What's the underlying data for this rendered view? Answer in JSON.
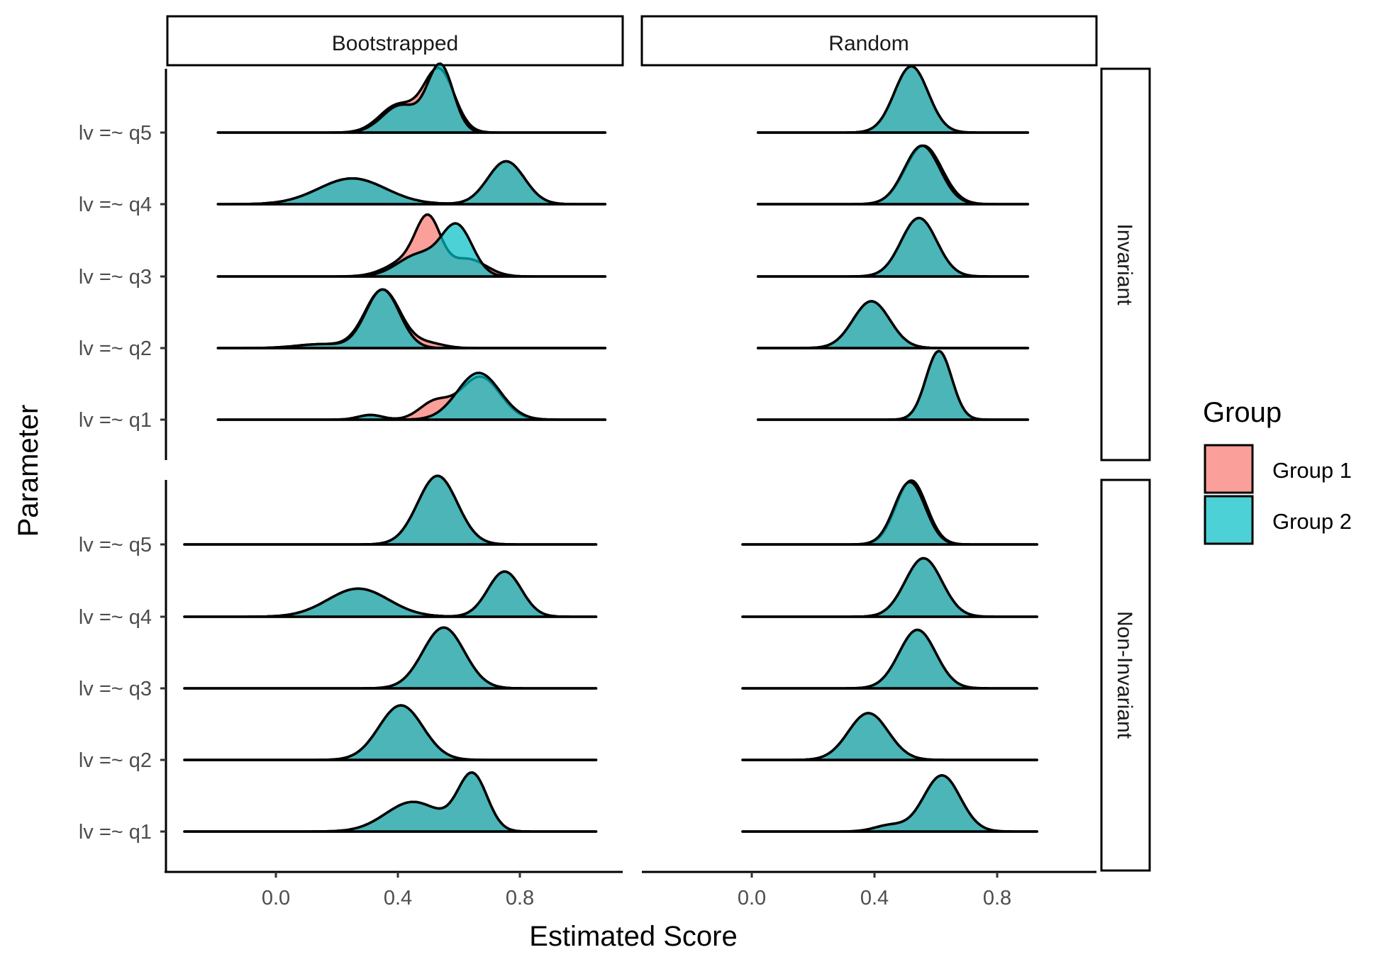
{
  "chart_data": {
    "type": "ridgeline-density",
    "xlabel": "Estimated Score",
    "ylabel": "Parameter",
    "x_ticks": [
      0.0,
      0.4,
      0.8
    ],
    "x_tick_labels": [
      "0.0",
      "0.4",
      "0.8"
    ],
    "column_facets": [
      "Bootstrapped",
      "Random"
    ],
    "row_facets": [
      "Invariant",
      "Non-Invariant"
    ],
    "parameters": [
      "lv =~ q5",
      "lv =~ q4",
      "lv =~ q3",
      "lv =~ q2",
      "lv =~ q1"
    ],
    "legend": {
      "title": "Group",
      "items": [
        {
          "label": "Group 1",
          "color": "#F8766D"
        },
        {
          "label": "Group 2",
          "color": "#00BFC4"
        }
      ]
    },
    "fill_opacity": 0.7,
    "panels": [
      {
        "column": "Bootstrapped",
        "row": "Invariant",
        "xrange": [
          -0.19,
          1.08
        ],
        "ridges": [
          {
            "parameter": "lv =~ q5",
            "group1": [
              {
                "mu": 0.535,
                "sd": 0.05,
                "w": 0.8
              },
              {
                "mu": 0.4,
                "sd": 0.06,
                "w": 0.35
              }
            ],
            "group2": [
              {
                "mu": 0.54,
                "sd": 0.042,
                "w": 0.85
              },
              {
                "mu": 0.41,
                "sd": 0.06,
                "w": 0.35
              }
            ]
          },
          {
            "parameter": "lv =~ q4",
            "group1": [
              {
                "mu": 0.25,
                "sd": 0.11,
                "w": 0.33
              },
              {
                "mu": 0.755,
                "sd": 0.06,
                "w": 0.55
              }
            ],
            "group2": [
              {
                "mu": 0.25,
                "sd": 0.11,
                "w": 0.33
              },
              {
                "mu": 0.755,
                "sd": 0.06,
                "w": 0.55
              }
            ]
          },
          {
            "parameter": "lv =~ q3",
            "group1": [
              {
                "mu": 0.5,
                "sd": 0.04,
                "w": 0.62
              },
              {
                "mu": 0.44,
                "sd": 0.07,
                "w": 0.22
              },
              {
                "mu": 0.63,
                "sd": 0.06,
                "w": 0.22
              }
            ],
            "group2": [
              {
                "mu": 0.595,
                "sd": 0.05,
                "w": 0.62
              },
              {
                "mu": 0.47,
                "sd": 0.07,
                "w": 0.28
              }
            ]
          },
          {
            "parameter": "lv =~ q2",
            "group1": [
              {
                "mu": 0.35,
                "sd": 0.058,
                "w": 0.75
              },
              {
                "mu": 0.15,
                "sd": 0.08,
                "w": 0.05
              },
              {
                "mu": 0.5,
                "sd": 0.05,
                "w": 0.06
              }
            ],
            "group2": [
              {
                "mu": 0.35,
                "sd": 0.055,
                "w": 0.75
              },
              {
                "mu": 0.15,
                "sd": 0.08,
                "w": 0.05
              }
            ]
          },
          {
            "parameter": "lv =~ q1",
            "group1": [
              {
                "mu": 0.67,
                "sd": 0.065,
                "w": 0.55
              },
              {
                "mu": 0.52,
                "sd": 0.05,
                "w": 0.22
              },
              {
                "mu": 0.31,
                "sd": 0.04,
                "w": 0.06
              }
            ],
            "group2": [
              {
                "mu": 0.665,
                "sd": 0.07,
                "w": 0.6
              },
              {
                "mu": 0.31,
                "sd": 0.04,
                "w": 0.06
              }
            ]
          }
        ]
      },
      {
        "column": "Random",
        "row": "Invariant",
        "xrange": [
          0.02,
          0.9
        ],
        "ridges": [
          {
            "parameter": "lv =~ q5",
            "group1": [
              {
                "mu": 0.52,
                "sd": 0.055,
                "w": 0.85
              }
            ],
            "group2": [
              {
                "mu": 0.52,
                "sd": 0.055,
                "w": 0.85
              }
            ]
          },
          {
            "parameter": "lv =~ q4",
            "group1": [
              {
                "mu": 0.56,
                "sd": 0.06,
                "w": 0.75
              }
            ],
            "group2": [
              {
                "mu": 0.555,
                "sd": 0.058,
                "w": 0.75
              }
            ]
          },
          {
            "parameter": "lv =~ q3",
            "group1": [
              {
                "mu": 0.545,
                "sd": 0.058,
                "w": 0.75
              }
            ],
            "group2": [
              {
                "mu": 0.545,
                "sd": 0.058,
                "w": 0.75
              }
            ]
          },
          {
            "parameter": "lv =~ q2",
            "group1": [
              {
                "mu": 0.39,
                "sd": 0.06,
                "w": 0.6
              }
            ],
            "group2": [
              {
                "mu": 0.39,
                "sd": 0.06,
                "w": 0.6
              }
            ]
          },
          {
            "parameter": "lv =~ q1",
            "group1": [
              {
                "mu": 0.61,
                "sd": 0.042,
                "w": 0.88
              }
            ],
            "group2": [
              {
                "mu": 0.61,
                "sd": 0.042,
                "w": 0.88
              }
            ]
          }
        ]
      },
      {
        "column": "Bootstrapped",
        "row": "Non-Invariant",
        "xrange": [
          -0.3,
          1.05
        ],
        "ridges": [
          {
            "parameter": "lv =~ q5",
            "group1": [
              {
                "mu": 0.53,
                "sd": 0.065,
                "w": 0.88
              }
            ],
            "group2": [
              {
                "mu": 0.53,
                "sd": 0.065,
                "w": 0.88
              }
            ]
          },
          {
            "parameter": "lv =~ q4",
            "group1": [
              {
                "mu": 0.27,
                "sd": 0.1,
                "w": 0.36
              },
              {
                "mu": 0.75,
                "sd": 0.055,
                "w": 0.58
              }
            ],
            "group2": [
              {
                "mu": 0.27,
                "sd": 0.1,
                "w": 0.36
              },
              {
                "mu": 0.75,
                "sd": 0.055,
                "w": 0.58
              }
            ]
          },
          {
            "parameter": "lv =~ q3",
            "group1": [
              {
                "mu": 0.55,
                "sd": 0.068,
                "w": 0.78
              }
            ],
            "group2": [
              {
                "mu": 0.55,
                "sd": 0.068,
                "w": 0.78
              }
            ]
          },
          {
            "parameter": "lv =~ q2",
            "group1": [
              {
                "mu": 0.41,
                "sd": 0.072,
                "w": 0.7
              }
            ],
            "group2": [
              {
                "mu": 0.41,
                "sd": 0.072,
                "w": 0.7
              }
            ]
          },
          {
            "parameter": "lv =~ q1",
            "group1": [
              {
                "mu": 0.645,
                "sd": 0.048,
                "w": 0.72
              },
              {
                "mu": 0.45,
                "sd": 0.09,
                "w": 0.38
              }
            ],
            "group2": [
              {
                "mu": 0.645,
                "sd": 0.048,
                "w": 0.72
              },
              {
                "mu": 0.45,
                "sd": 0.09,
                "w": 0.38
              }
            ]
          }
        ]
      },
      {
        "column": "Random",
        "row": "Non-Invariant",
        "xrange": [
          -0.03,
          0.93
        ],
        "ridges": [
          {
            "parameter": "lv =~ q5",
            "group1": [
              {
                "mu": 0.52,
                "sd": 0.05,
                "w": 0.82
              }
            ],
            "group2": [
              {
                "mu": 0.515,
                "sd": 0.05,
                "w": 0.8
              }
            ]
          },
          {
            "parameter": "lv =~ q4",
            "group1": [
              {
                "mu": 0.56,
                "sd": 0.06,
                "w": 0.75
              }
            ],
            "group2": [
              {
                "mu": 0.56,
                "sd": 0.06,
                "w": 0.75
              }
            ]
          },
          {
            "parameter": "lv =~ q3",
            "group1": [
              {
                "mu": 0.54,
                "sd": 0.06,
                "w": 0.75
              }
            ],
            "group2": [
              {
                "mu": 0.54,
                "sd": 0.06,
                "w": 0.75
              }
            ]
          },
          {
            "parameter": "lv =~ q2",
            "group1": [
              {
                "mu": 0.38,
                "sd": 0.065,
                "w": 0.6
              }
            ],
            "group2": [
              {
                "mu": 0.38,
                "sd": 0.065,
                "w": 0.6
              }
            ]
          },
          {
            "parameter": "lv =~ q1",
            "group1": [
              {
                "mu": 0.62,
                "sd": 0.06,
                "w": 0.72
              },
              {
                "mu": 0.45,
                "sd": 0.05,
                "w": 0.08
              }
            ],
            "group2": [
              {
                "mu": 0.62,
                "sd": 0.06,
                "w": 0.72
              },
              {
                "mu": 0.45,
                "sd": 0.05,
                "w": 0.08
              }
            ]
          }
        ]
      }
    ]
  }
}
